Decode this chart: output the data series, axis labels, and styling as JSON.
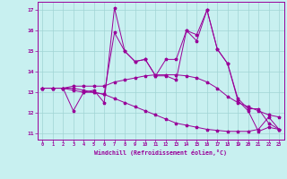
{
  "xlabel": "Windchill (Refroidissement éolien,°C)",
  "bg_color": "#c8f0f0",
  "line_color": "#990099",
  "x_ticks": [
    0,
    1,
    2,
    3,
    4,
    5,
    6,
    7,
    8,
    9,
    10,
    11,
    12,
    13,
    14,
    15,
    16,
    17,
    18,
    19,
    20,
    21,
    22,
    23
  ],
  "ylim": [
    10.7,
    17.4
  ],
  "xlim": [
    -0.5,
    23.5
  ],
  "y_ticks": [
    11,
    12,
    13,
    14,
    15,
    16,
    17
  ],
  "series": [
    [
      13.2,
      13.2,
      13.2,
      13.3,
      13.3,
      13.3,
      13.3,
      13.5,
      13.6,
      13.7,
      13.8,
      13.85,
      13.85,
      13.85,
      13.8,
      13.7,
      13.5,
      13.2,
      12.8,
      12.5,
      12.3,
      12.1,
      11.9,
      11.8
    ],
    [
      13.2,
      13.2,
      13.2,
      12.1,
      13.0,
      13.1,
      12.5,
      17.1,
      15.0,
      14.5,
      14.6,
      13.8,
      14.6,
      14.6,
      16.0,
      15.8,
      17.0,
      15.1,
      14.4,
      12.7,
      12.2,
      12.2,
      11.5,
      11.2
    ],
    [
      13.2,
      13.2,
      13.2,
      13.2,
      13.1,
      13.0,
      12.9,
      15.9,
      15.0,
      14.5,
      14.6,
      13.8,
      13.8,
      13.6,
      16.0,
      15.5,
      17.0,
      15.1,
      14.4,
      12.6,
      12.1,
      11.1,
      11.3,
      11.2
    ],
    [
      13.2,
      13.2,
      13.2,
      13.1,
      13.0,
      13.0,
      12.9,
      12.7,
      12.5,
      12.3,
      12.1,
      11.9,
      11.7,
      11.5,
      11.4,
      11.3,
      11.2,
      11.15,
      11.1,
      11.1,
      11.1,
      11.2,
      11.8,
      11.2
    ]
  ]
}
